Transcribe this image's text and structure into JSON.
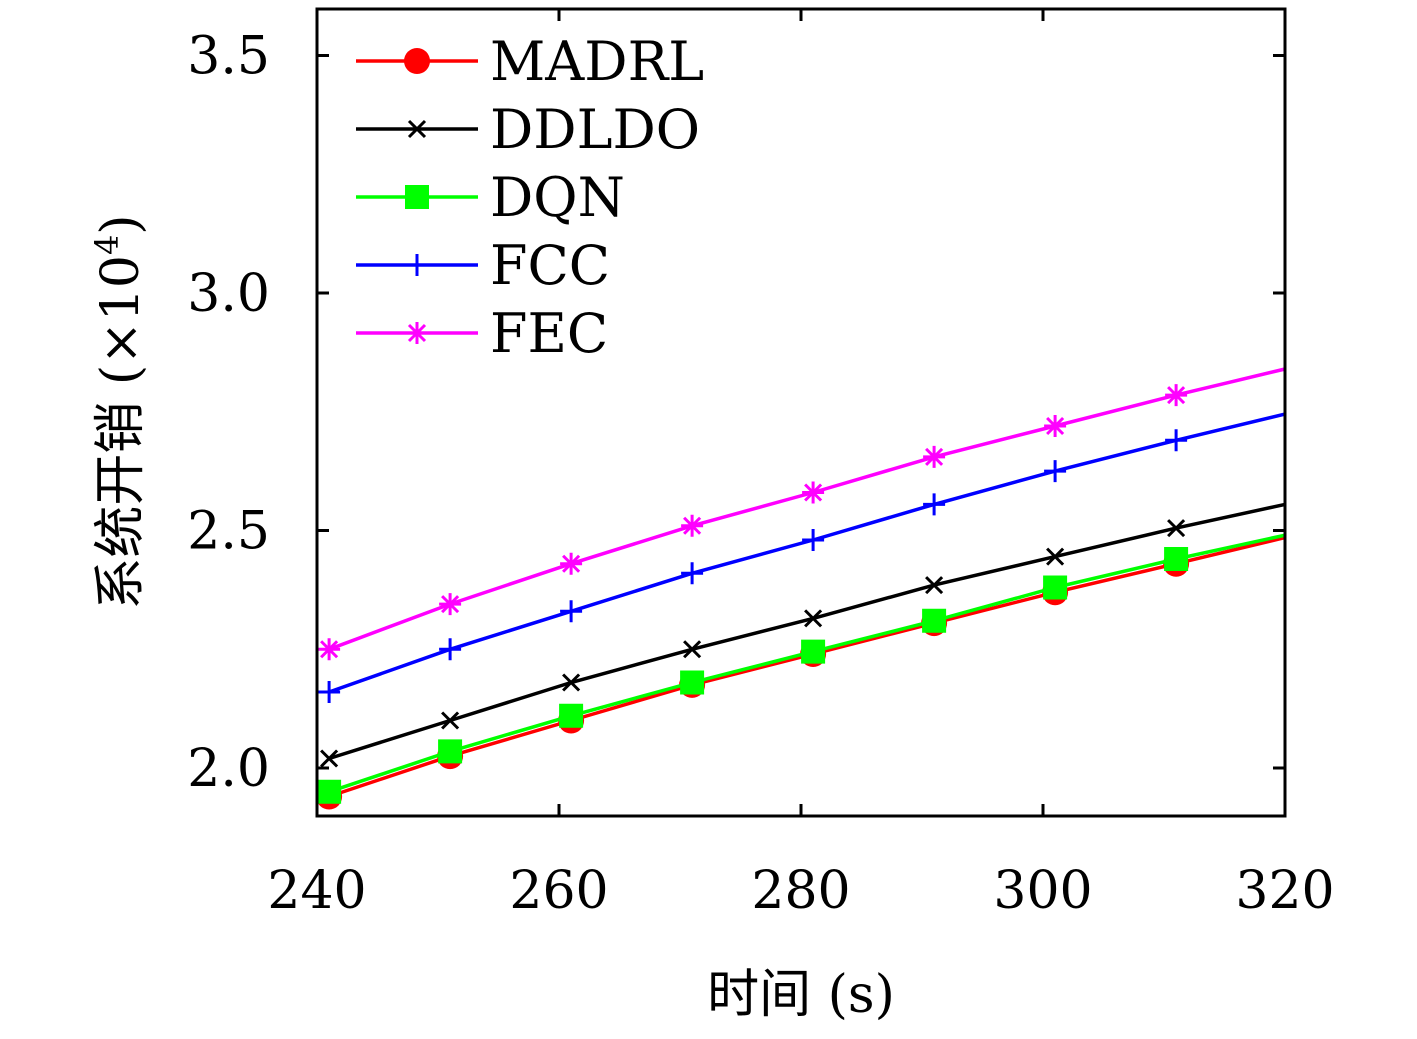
{
  "chart_data": {
    "type": "line",
    "xlabel": "时间 (s)",
    "ylabel": "系统开销 (×10⁴)",
    "ylabel_main": "系统开销 (×10",
    "ylabel_exp": "4",
    "ylabel_close": ")",
    "xlim": [
      240,
      320
    ],
    "ylim": [
      1.9,
      3.6
    ],
    "xticks": [
      240,
      260,
      280,
      300,
      320
    ],
    "xtick_labels": [
      "240",
      "260",
      "280",
      "300",
      "320"
    ],
    "yticks": [
      2.0,
      2.5,
      3.0,
      3.5
    ],
    "ytick_labels": [
      "2.0",
      "2.5",
      "3.0",
      "3.5"
    ],
    "grid": false,
    "legend_position": "top-left",
    "x": [
      241,
      251,
      261,
      271,
      281,
      291,
      301,
      311,
      320
    ],
    "series": [
      {
        "name": "MADRL",
        "color": "#ff0000",
        "marker": "circle",
        "values": [
          1.94,
          2.025,
          2.1,
          2.175,
          2.24,
          2.305,
          2.37,
          2.43,
          2.485
        ]
      },
      {
        "name": "DDLDO",
        "color": "#000000",
        "marker": "x",
        "values": [
          2.02,
          2.1,
          2.18,
          2.25,
          2.315,
          2.385,
          2.445,
          2.505,
          2.555
        ]
      },
      {
        "name": "DQN",
        "color": "#00ff00",
        "marker": "square",
        "values": [
          1.95,
          2.035,
          2.11,
          2.18,
          2.245,
          2.31,
          2.38,
          2.44,
          2.49
        ]
      },
      {
        "name": "FCC",
        "color": "#0000ff",
        "marker": "plus",
        "values": [
          2.16,
          2.25,
          2.33,
          2.41,
          2.48,
          2.555,
          2.625,
          2.69,
          2.745
        ]
      },
      {
        "name": "FEC",
        "color": "#ff00ff",
        "marker": "asterisk",
        "values": [
          2.25,
          2.345,
          2.43,
          2.51,
          2.58,
          2.655,
          2.72,
          2.785,
          2.84
        ]
      }
    ]
  }
}
